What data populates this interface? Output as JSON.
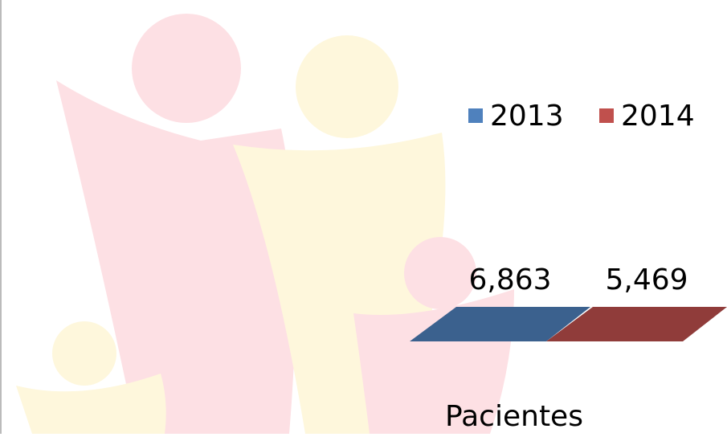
{
  "chart_data": {
    "type": "bar3d",
    "categories": [
      "Pacientes"
    ],
    "series": [
      {
        "name": "2013",
        "color": "#4f81bd",
        "values": [
          6863
        ],
        "value_labels": [
          "6,863"
        ]
      },
      {
        "name": "2014",
        "color": "#c0504d",
        "values": [
          5469
        ],
        "value_labels": [
          "5,469"
        ]
      }
    ],
    "legend": "top-right"
  }
}
